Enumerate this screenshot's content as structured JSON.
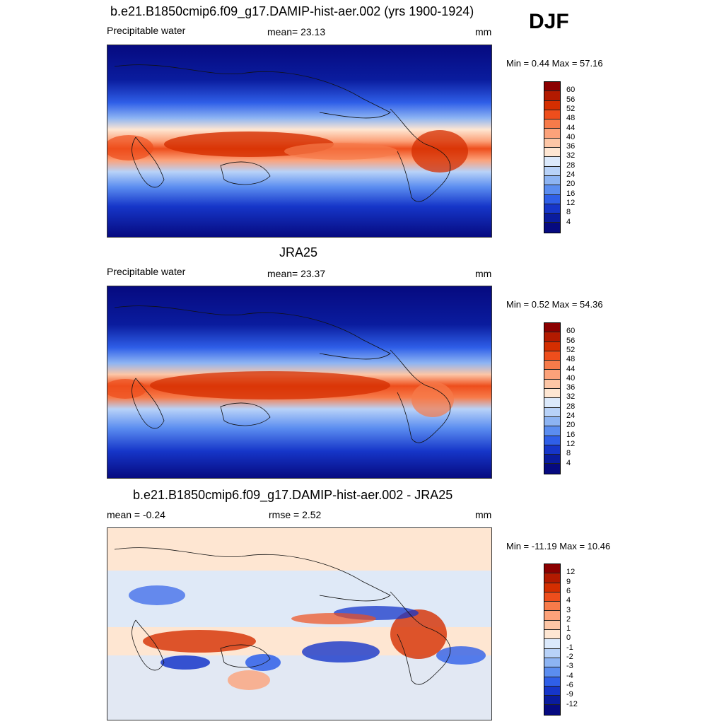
{
  "season": "DJF",
  "panels": [
    {
      "title": "b.e21.B1850cmip6.f09_g17.DAMIP-hist-aer.002 (yrs 1900-1924)",
      "left_label": "Precipitable water",
      "center_label": "mean=  23.13",
      "units": "mm",
      "minmax": "Min =   0.44 Max =  57.16",
      "levels": [
        "60",
        "56",
        "52",
        "48",
        "44",
        "40",
        "36",
        "32",
        "28",
        "24",
        "20",
        "16",
        "12",
        "8",
        "4"
      ],
      "colors": [
        "#8b0000",
        "#b31a00",
        "#d42e00",
        "#ee4e1c",
        "#f77b4a",
        "#fca27a",
        "#fdc6a6",
        "#fee6d2",
        "#dbe9fb",
        "#b8d2f8",
        "#8db4f3",
        "#5b8df0",
        "#2f5fe8",
        "#1636c9",
        "#0a1c9e",
        "#060a80"
      ]
    },
    {
      "title": "JRA25",
      "left_label": "Precipitable water",
      "center_label": "mean=  23.37",
      "units": "mm",
      "minmax": "Min =   0.52 Max =  54.36",
      "levels": [
        "60",
        "56",
        "52",
        "48",
        "44",
        "40",
        "36",
        "32",
        "28",
        "24",
        "20",
        "16",
        "12",
        "8",
        "4"
      ],
      "colors": [
        "#8b0000",
        "#b31a00",
        "#d42e00",
        "#ee4e1c",
        "#f77b4a",
        "#fca27a",
        "#fdc6a6",
        "#fee6d2",
        "#dbe9fb",
        "#b8d2f8",
        "#8db4f3",
        "#5b8df0",
        "#2f5fe8",
        "#1636c9",
        "#0a1c9e",
        "#060a80"
      ]
    },
    {
      "title": "b.e21.B1850cmip6.f09_g17.DAMIP-hist-aer.002 - JRA25",
      "left_label": "mean =  -0.24",
      "center_label": "rmse =   2.52",
      "units": "mm",
      "minmax": "Min = -11.19 Max =  10.46",
      "levels": [
        "12",
        "9",
        "6",
        "4",
        "3",
        "2",
        "1",
        "0",
        "-1",
        "-2",
        "-3",
        "-4",
        "-6",
        "-9",
        "-12"
      ],
      "colors": [
        "#8b0000",
        "#b31a00",
        "#d42e00",
        "#ee4e1c",
        "#f77b4a",
        "#fca27a",
        "#fdc6a6",
        "#fee6d2",
        "#dbe9fb",
        "#b8d2f8",
        "#8db4f3",
        "#5b8df0",
        "#2f5fe8",
        "#1636c9",
        "#0a1c9e",
        "#060a80"
      ]
    }
  ]
}
